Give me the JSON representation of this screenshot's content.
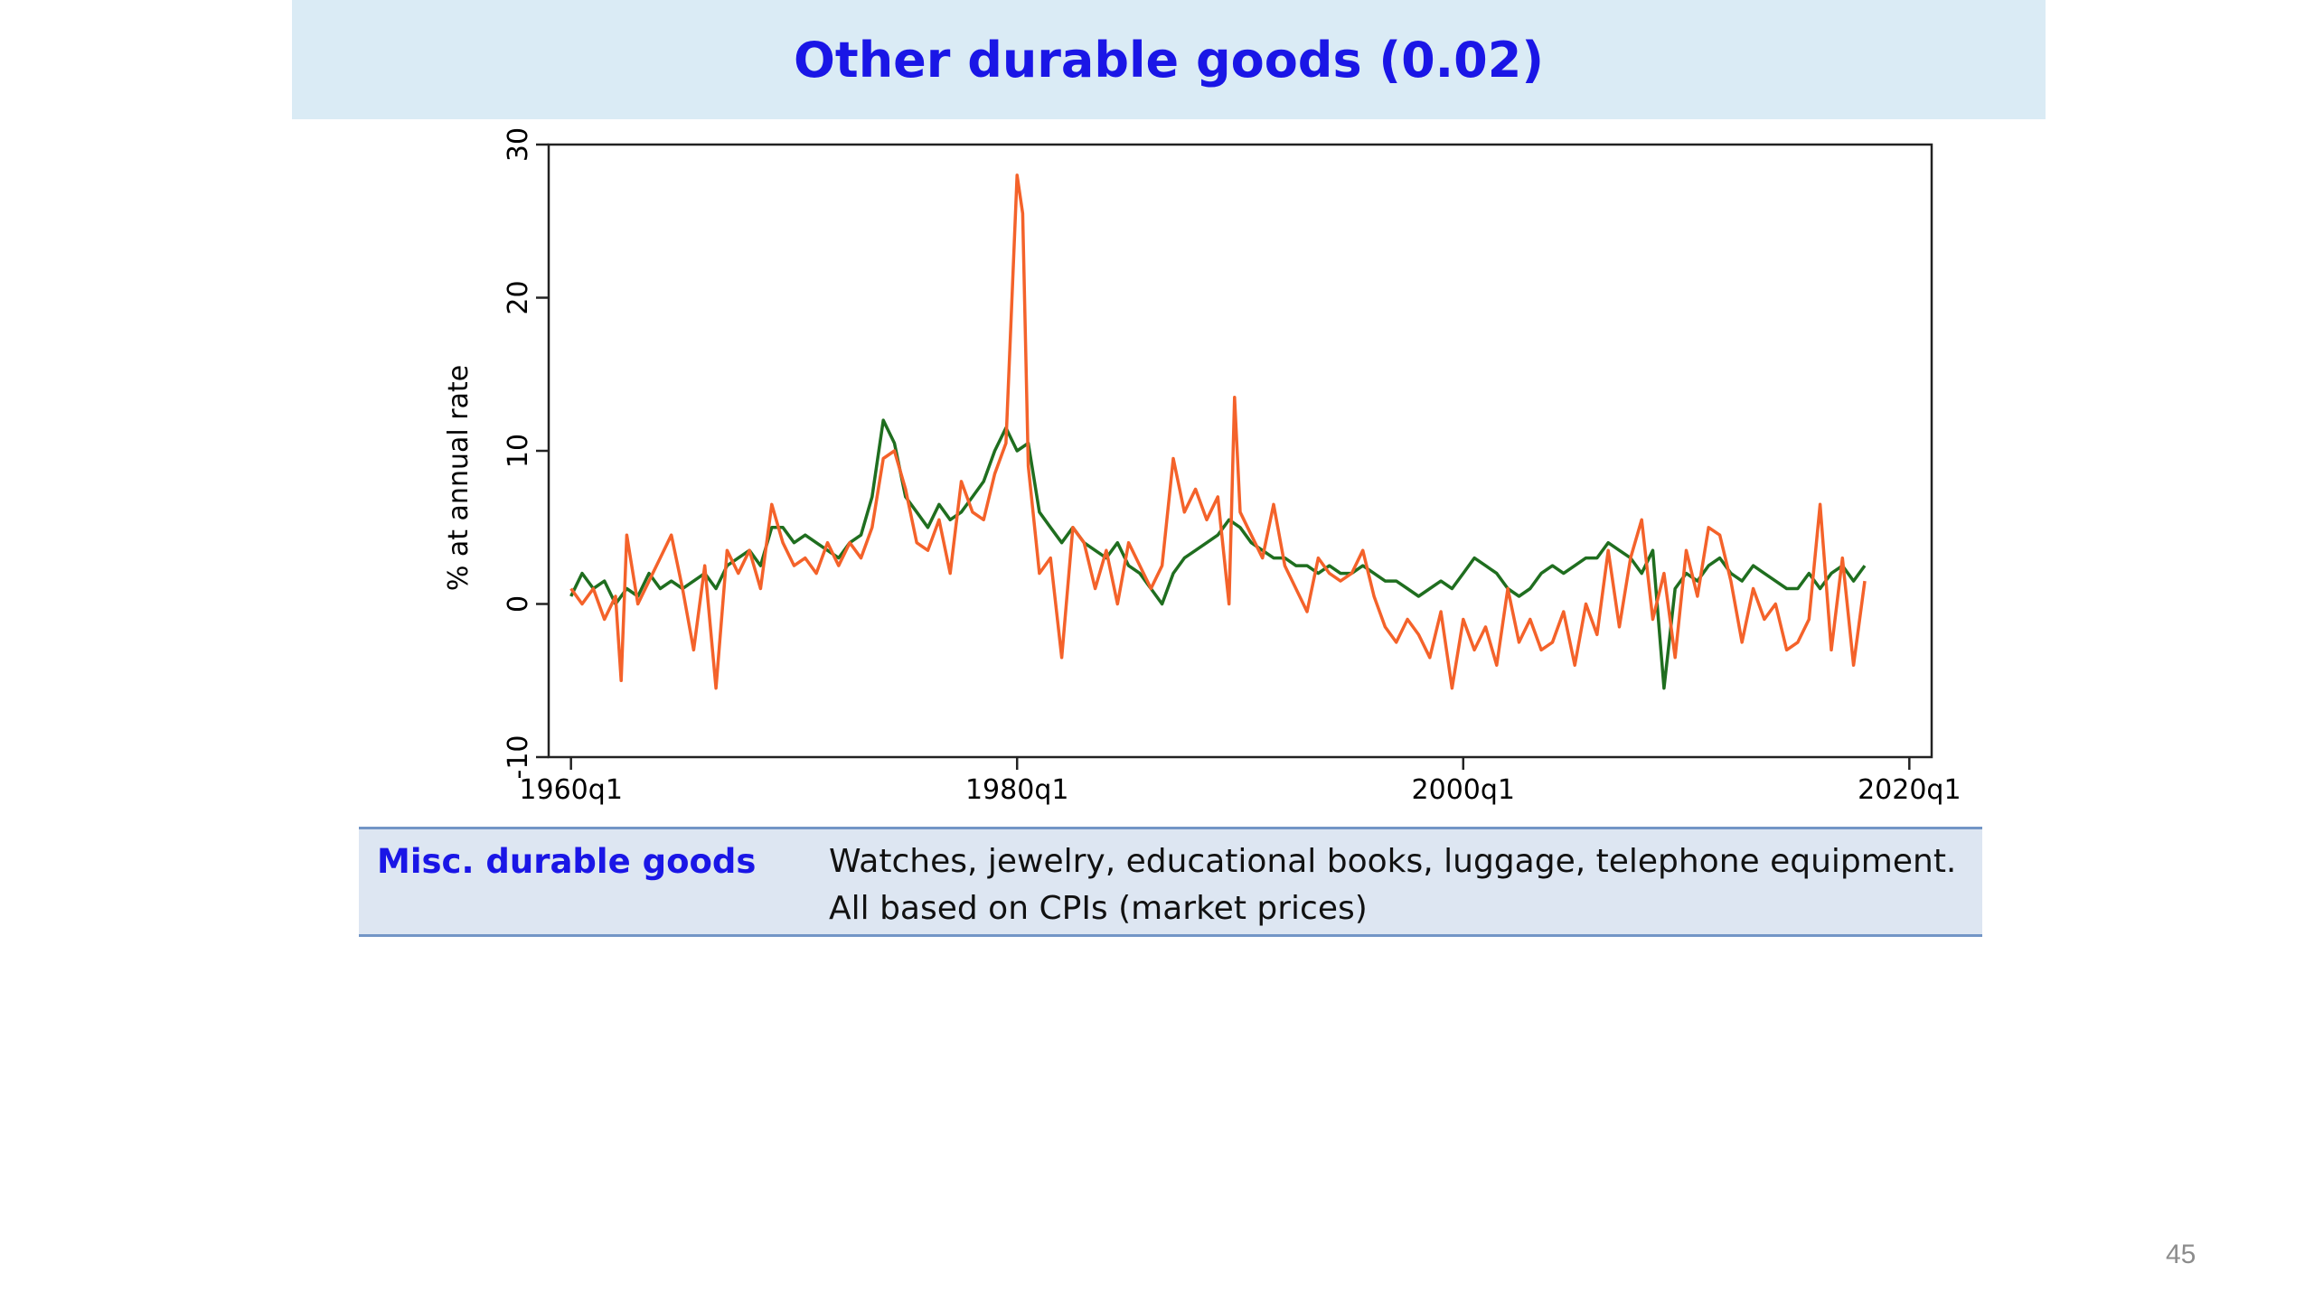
{
  "slide": {
    "title": "Other durable goods (0.02)",
    "page_number": "45"
  },
  "table": {
    "label": "Misc. durable goods",
    "description_line1": "Watches, jewelry, educational books, luggage, telephone equipment.",
    "description_line2": "All based on CPIs (market prices)"
  },
  "colors": {
    "title": "#1a16e6",
    "banner": "#daebf5",
    "series_orange": "#f4622a",
    "series_green": "#1f6e1f",
    "table_bg": "#dde6f2",
    "table_border": "#7295c6"
  },
  "chart_data": {
    "type": "line",
    "ylabel": "% at annual rate",
    "xlabel": "",
    "xlim": [
      1959,
      2021
    ],
    "ylim": [
      -10,
      30
    ],
    "yticks": [
      -10,
      0,
      10,
      20,
      30
    ],
    "ytick_labels": [
      "-10",
      "0",
      "10",
      "20",
      "30"
    ],
    "xticks": [
      1960,
      1980,
      2000,
      2020
    ],
    "xtick_labels": [
      "1960q1",
      "1980q1",
      "2000q1",
      "2020q1"
    ],
    "grid": false,
    "legend": "none",
    "series": [
      {
        "color": "#1f6e1f",
        "x": [
          1960.0,
          1960.5,
          1961.0,
          1961.5,
          1962.0,
          1962.5,
          1963.0,
          1963.5,
          1964.0,
          1964.5,
          1965.0,
          1965.5,
          1966.0,
          1966.5,
          1967.0,
          1967.5,
          1968.0,
          1968.5,
          1969.0,
          1969.5,
          1970.0,
          1970.5,
          1971.0,
          1971.5,
          1972.0,
          1972.5,
          1973.0,
          1973.5,
          1974.0,
          1974.5,
          1975.0,
          1975.5,
          1976.0,
          1976.5,
          1977.0,
          1977.5,
          1978.0,
          1978.5,
          1979.0,
          1979.5,
          1980.0,
          1980.5,
          1981.0,
          1981.5,
          1982.0,
          1982.5,
          1983.0,
          1983.5,
          1984.0,
          1984.5,
          1985.0,
          1985.5,
          1986.0,
          1986.5,
          1987.0,
          1987.5,
          1988.0,
          1988.5,
          1989.0,
          1989.5,
          1990.0,
          1990.5,
          1991.0,
          1991.5,
          1992.0,
          1992.5,
          1993.0,
          1993.5,
          1994.0,
          1994.5,
          1995.0,
          1995.5,
          1996.0,
          1996.5,
          1997.0,
          1997.5,
          1998.0,
          1998.5,
          1999.0,
          1999.5,
          2000.0,
          2000.5,
          2001.0,
          2001.5,
          2002.0,
          2002.5,
          2003.0,
          2003.5,
          2004.0,
          2004.5,
          2005.0,
          2005.5,
          2006.0,
          2006.5,
          2007.0,
          2007.5,
          2008.0,
          2008.5,
          2009.0,
          2009.5,
          2010.0,
          2010.5,
          2011.0,
          2011.5,
          2012.0,
          2012.5,
          2013.0,
          2013.5,
          2014.0,
          2014.5,
          2015.0,
          2015.5,
          2016.0,
          2016.5,
          2017.0,
          2017.5,
          2018.0
        ],
        "values": [
          0.5,
          2.0,
          1.0,
          1.5,
          0.0,
          1.0,
          0.5,
          2.0,
          1.0,
          1.5,
          1.0,
          1.5,
          2.0,
          1.0,
          2.5,
          3.0,
          3.5,
          2.5,
          5.0,
          5.0,
          4.0,
          4.5,
          4.0,
          3.5,
          3.0,
          4.0,
          4.5,
          7.0,
          12.0,
          10.5,
          7.0,
          6.0,
          5.0,
          6.5,
          5.5,
          6.0,
          7.0,
          8.0,
          10.0,
          11.5,
          10.0,
          10.5,
          6.0,
          5.0,
          4.0,
          5.0,
          4.0,
          3.5,
          3.0,
          4.0,
          2.5,
          2.0,
          1.0,
          0.0,
          2.0,
          3.0,
          3.5,
          4.0,
          4.5,
          5.5,
          5.0,
          4.0,
          3.5,
          3.0,
          3.0,
          2.5,
          2.5,
          2.0,
          2.5,
          2.0,
          2.0,
          2.5,
          2.0,
          1.5,
          1.5,
          1.0,
          0.5,
          1.0,
          1.5,
          1.0,
          2.0,
          3.0,
          2.5,
          2.0,
          1.0,
          0.5,
          1.0,
          2.0,
          2.5,
          2.0,
          2.5,
          3.0,
          3.0,
          4.0,
          3.5,
          3.0,
          2.0,
          3.5,
          -5.5,
          1.0,
          2.0,
          1.5,
          2.5,
          3.0,
          2.0,
          1.5,
          2.5,
          2.0,
          1.5,
          1.0,
          1.0,
          2.0,
          1.0,
          2.0,
          2.5,
          1.5,
          2.5
        ]
      },
      {
        "color": "#f4622a",
        "x": [
          1960.0,
          1960.5,
          1961.0,
          1961.5,
          1962.0,
          1962.25,
          1962.5,
          1963.0,
          1963.5,
          1964.0,
          1964.5,
          1965.0,
          1965.5,
          1966.0,
          1966.5,
          1967.0,
          1967.5,
          1968.0,
          1968.5,
          1969.0,
          1969.5,
          1970.0,
          1970.5,
          1971.0,
          1971.5,
          1972.0,
          1972.5,
          1973.0,
          1973.5,
          1974.0,
          1974.5,
          1975.0,
          1975.5,
          1976.0,
          1976.5,
          1977.0,
          1977.5,
          1978.0,
          1978.5,
          1979.0,
          1979.5,
          1980.0,
          1980.25,
          1980.5,
          1981.0,
          1981.5,
          1982.0,
          1982.5,
          1983.0,
          1983.5,
          1984.0,
          1984.5,
          1985.0,
          1985.5,
          1986.0,
          1986.5,
          1987.0,
          1987.5,
          1988.0,
          1988.5,
          1989.0,
          1989.5,
          1989.75,
          1990.0,
          1990.5,
          1991.0,
          1991.5,
          1992.0,
          1992.5,
          1993.0,
          1993.5,
          1994.0,
          1994.5,
          1995.0,
          1995.5,
          1996.0,
          1996.5,
          1997.0,
          1997.5,
          1998.0,
          1998.5,
          1999.0,
          1999.5,
          2000.0,
          2000.5,
          2001.0,
          2001.5,
          2002.0,
          2002.5,
          2003.0,
          2003.5,
          2004.0,
          2004.5,
          2005.0,
          2005.5,
          2006.0,
          2006.5,
          2007.0,
          2007.5,
          2008.0,
          2008.5,
          2009.0,
          2009.5,
          2010.0,
          2010.5,
          2011.0,
          2011.5,
          2012.0,
          2012.5,
          2013.0,
          2013.5,
          2014.0,
          2014.5,
          2015.0,
          2015.5,
          2016.0,
          2016.5,
          2017.0,
          2017.5,
          2018.0
        ],
        "values": [
          1.0,
          0.0,
          1.0,
          -1.0,
          0.5,
          -5.0,
          4.5,
          0.0,
          1.5,
          3.0,
          4.5,
          1.0,
          -3.0,
          2.5,
          -5.5,
          3.5,
          2.0,
          3.5,
          1.0,
          6.5,
          4.0,
          2.5,
          3.0,
          2.0,
          4.0,
          2.5,
          4.0,
          3.0,
          5.0,
          9.5,
          10.0,
          7.5,
          4.0,
          3.5,
          5.5,
          2.0,
          8.0,
          6.0,
          5.5,
          8.5,
          10.5,
          28.0,
          25.5,
          9.0,
          2.0,
          3.0,
          -3.5,
          5.0,
          4.0,
          1.0,
          3.5,
          0.0,
          4.0,
          2.5,
          1.0,
          2.5,
          9.5,
          6.0,
          7.5,
          5.5,
          7.0,
          0.0,
          13.5,
          6.0,
          4.5,
          3.0,
          6.5,
          2.5,
          1.0,
          -0.5,
          3.0,
          2.0,
          1.5,
          2.0,
          3.5,
          0.5,
          -1.5,
          -2.5,
          -1.0,
          -2.0,
          -3.5,
          -0.5,
          -5.5,
          -1.0,
          -3.0,
          -1.5,
          -4.0,
          1.0,
          -2.5,
          -1.0,
          -3.0,
          -2.5,
          -0.5,
          -4.0,
          0.0,
          -2.0,
          3.5,
          -1.5,
          3.0,
          5.5,
          -1.0,
          2.0,
          -3.5,
          3.5,
          0.5,
          5.0,
          4.5,
          1.5,
          -2.5,
          1.0,
          -1.0,
          0.0,
          -3.0,
          -2.5,
          -1.0,
          6.5,
          -3.0,
          3.0,
          -4.0,
          1.5
        ]
      }
    ]
  }
}
